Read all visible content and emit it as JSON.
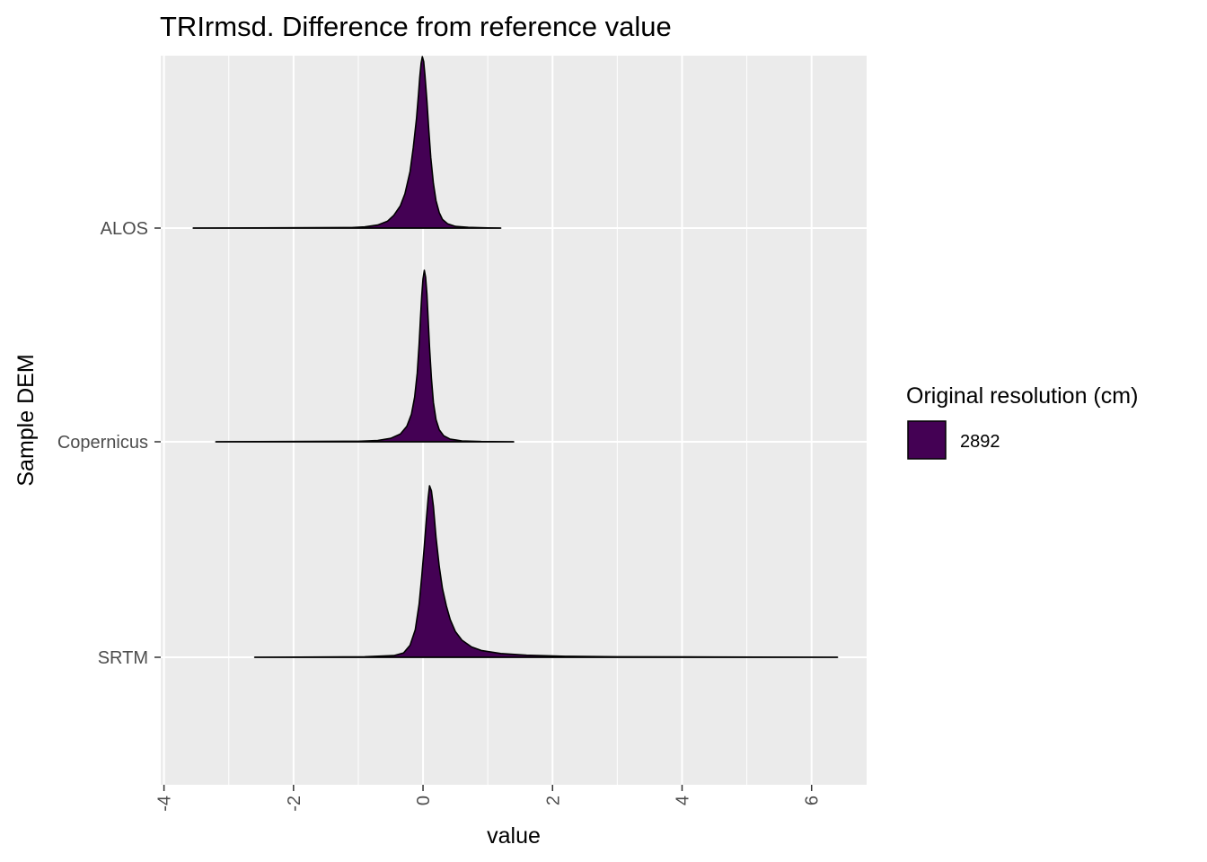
{
  "chart_data": {
    "type": "ridgeline density",
    "title": "TRIrmsd. Difference from reference value",
    "xlabel": "value",
    "ylabel": "Sample DEM",
    "xlim": [
      -4.05,
      6.85
    ],
    "x_ticks": [
      -4,
      -2,
      0,
      2,
      4,
      6
    ],
    "x_tick_labels": [
      "-4",
      "-2",
      "0",
      "2",
      "4",
      "6"
    ],
    "categories": [
      "ALOS",
      "Copernicus",
      "SRTM"
    ],
    "legend": {
      "title": "Original resolution (cm)",
      "items": [
        {
          "label": "2892",
          "color": "#440154"
        }
      ],
      "position": "right"
    },
    "fill_color": "#440154",
    "series": [
      {
        "name": "ALOS",
        "range": [
          -3.55,
          1.2
        ],
        "density": [
          [
            -3.55,
            0.0
          ],
          [
            -1.1,
            0.003
          ],
          [
            -0.9,
            0.007
          ],
          [
            -0.7,
            0.018
          ],
          [
            -0.55,
            0.04
          ],
          [
            -0.45,
            0.075
          ],
          [
            -0.35,
            0.13
          ],
          [
            -0.28,
            0.2
          ],
          [
            -0.2,
            0.33
          ],
          [
            -0.15,
            0.47
          ],
          [
            -0.1,
            0.64
          ],
          [
            -0.07,
            0.78
          ],
          [
            -0.05,
            0.88
          ],
          [
            -0.03,
            0.96
          ],
          [
            -0.01,
            1.0
          ],
          [
            0.01,
            0.97
          ],
          [
            0.03,
            0.89
          ],
          [
            0.06,
            0.74
          ],
          [
            0.09,
            0.57
          ],
          [
            0.12,
            0.41
          ],
          [
            0.16,
            0.26
          ],
          [
            0.2,
            0.16
          ],
          [
            0.25,
            0.09
          ],
          [
            0.3,
            0.05
          ],
          [
            0.38,
            0.025
          ],
          [
            0.5,
            0.01
          ],
          [
            0.7,
            0.004
          ],
          [
            1.0,
            0.001
          ],
          [
            1.2,
            0.0
          ]
        ]
      },
      {
        "name": "Copernicus",
        "range": [
          -3.2,
          1.4
        ],
        "density": [
          [
            -3.2,
            0.0
          ],
          [
            -1.0,
            0.003
          ],
          [
            -0.7,
            0.008
          ],
          [
            -0.5,
            0.02
          ],
          [
            -0.35,
            0.045
          ],
          [
            -0.25,
            0.09
          ],
          [
            -0.18,
            0.16
          ],
          [
            -0.13,
            0.26
          ],
          [
            -0.09,
            0.4
          ],
          [
            -0.06,
            0.57
          ],
          [
            -0.04,
            0.72
          ],
          [
            -0.02,
            0.85
          ],
          [
            0.0,
            0.95
          ],
          [
            0.02,
            1.0
          ],
          [
            0.04,
            0.96
          ],
          [
            0.06,
            0.86
          ],
          [
            0.08,
            0.71
          ],
          [
            0.1,
            0.55
          ],
          [
            0.13,
            0.37
          ],
          [
            0.16,
            0.23
          ],
          [
            0.2,
            0.13
          ],
          [
            0.25,
            0.07
          ],
          [
            0.32,
            0.035
          ],
          [
            0.42,
            0.015
          ],
          [
            0.6,
            0.005
          ],
          [
            0.9,
            0.0015
          ],
          [
            1.4,
            0.0
          ]
        ]
      },
      {
        "name": "SRTM",
        "range": [
          -2.6,
          6.4
        ],
        "density": [
          [
            -2.6,
            0.0
          ],
          [
            -0.9,
            0.003
          ],
          [
            -0.45,
            0.01
          ],
          [
            -0.3,
            0.025
          ],
          [
            -0.2,
            0.07
          ],
          [
            -0.12,
            0.16
          ],
          [
            -0.06,
            0.31
          ],
          [
            -0.02,
            0.47
          ],
          [
            0.02,
            0.65
          ],
          [
            0.05,
            0.8
          ],
          [
            0.08,
            0.93
          ],
          [
            0.1,
            1.0
          ],
          [
            0.13,
            0.97
          ],
          [
            0.16,
            0.88
          ],
          [
            0.2,
            0.7
          ],
          [
            0.25,
            0.53
          ],
          [
            0.3,
            0.4
          ],
          [
            0.36,
            0.3
          ],
          [
            0.42,
            0.22
          ],
          [
            0.5,
            0.15
          ],
          [
            0.6,
            0.1
          ],
          [
            0.75,
            0.06
          ],
          [
            0.9,
            0.04
          ],
          [
            1.2,
            0.022
          ],
          [
            1.6,
            0.012
          ],
          [
            2.2,
            0.006
          ],
          [
            3.0,
            0.003
          ],
          [
            4.5,
            0.0015
          ],
          [
            6.4,
            0.0
          ]
        ]
      }
    ]
  }
}
